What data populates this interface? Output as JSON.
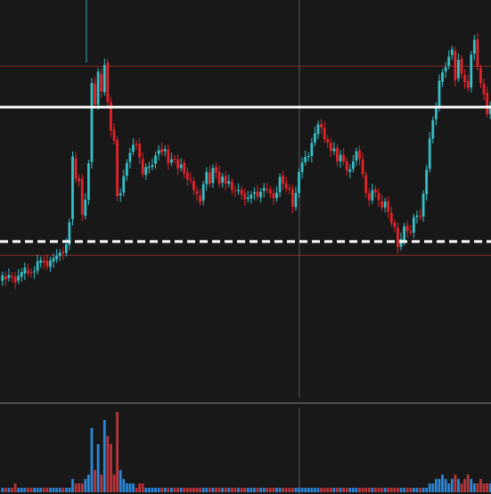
{
  "chart_data": {
    "type": "candlestick",
    "title": "",
    "xlabel": "",
    "ylabel": "",
    "grid": true,
    "legend": "none",
    "ylim": [
      0,
      100
    ],
    "colors": {
      "background": "#181818",
      "up": "#35c0c8",
      "down": "#e0242a",
      "volume_up": "#2a86d6",
      "volume_down": "#b9343a",
      "resistance_line": "#ffffff",
      "support_line": "#ffffff",
      "range_line": "#8a2a2a",
      "crosshair": "#5a5a5a",
      "pane_separator": "#505050"
    },
    "levels": {
      "resistance": 73.3,
      "support": 39.8,
      "range_high": 83.5,
      "range_low": 36.4
    },
    "candles": [
      [
        30.0,
        31.4
      ],
      [
        31.1,
        30.4
      ],
      [
        30.7,
        31.5
      ],
      [
        31.2,
        30.9
      ],
      [
        31.0,
        29.6
      ],
      [
        30.1,
        31.3
      ],
      [
        31.0,
        32.2
      ],
      [
        31.8,
        33.3
      ],
      [
        32.6,
        31.9
      ],
      [
        32.2,
        32.1
      ],
      [
        32.1,
        32.4
      ],
      [
        32.5,
        34.9
      ],
      [
        34.5,
        35.2
      ],
      [
        35.0,
        34.5
      ],
      [
        35.0,
        33.6
      ],
      [
        33.5,
        35.1
      ],
      [
        34.8,
        35.7
      ],
      [
        35.4,
        36.3
      ],
      [
        36.2,
        37.0
      ],
      [
        37.3,
        36.9
      ],
      [
        37.0,
        39.1
      ],
      [
        39.0,
        44.6
      ],
      [
        45.4,
        61.0
      ],
      [
        60.5,
        55.4
      ],
      [
        55.6,
        54.8
      ],
      [
        55.4,
        46.5
      ],
      [
        46.2,
        50.2
      ],
      [
        50.2,
        59.3
      ],
      [
        59.6,
        79.3
      ],
      [
        79.2,
        74.0
      ],
      [
        73.9,
        82.1
      ],
      [
        81.6,
        77.2
      ],
      [
        77.0,
        83.8
      ],
      [
        84.4,
        74.5
      ],
      [
        74.6,
        67.5
      ],
      [
        67.7,
        64.9
      ],
      [
        65.2,
        51.1
      ],
      [
        51.3,
        51.8
      ],
      [
        52.0,
        56.1
      ],
      [
        56.2,
        59.4
      ],
      [
        59.6,
        61.9
      ],
      [
        62.2,
        63.9
      ],
      [
        64.2,
        63.9
      ],
      [
        64.2,
        60.7
      ],
      [
        60.4,
        56.6
      ],
      [
        56.4,
        58.4
      ],
      [
        58.4,
        58.4
      ],
      [
        58.4,
        58.9
      ],
      [
        59.2,
        61.3
      ],
      [
        61.6,
        62.6
      ],
      [
        62.9,
        62.0
      ],
      [
        62.3,
        62.8
      ],
      [
        62.7,
        59.3
      ],
      [
        59.5,
        60.3
      ],
      [
        60.5,
        60.3
      ],
      [
        60.3,
        58.0
      ],
      [
        58.1,
        59.0
      ],
      [
        59.4,
        56.8
      ],
      [
        57.0,
        55.3
      ],
      [
        55.4,
        55.1
      ],
      [
        54.9,
        52.6
      ],
      [
        52.4,
        51.6
      ],
      [
        51.3,
        49.6
      ],
      [
        50.0,
        54.1
      ],
      [
        54.1,
        57.1
      ],
      [
        57.1,
        54.2
      ],
      [
        54.4,
        58.2
      ],
      [
        58.3,
        57.0
      ],
      [
        57.2,
        54.2
      ],
      [
        54.5,
        56.0
      ],
      [
        56.1,
        54.2
      ],
      [
        54.2,
        54.9
      ],
      [
        54.7,
        52.7
      ],
      [
        52.6,
        52.5
      ],
      [
        52.4,
        52.7
      ],
      [
        52.7,
        51.5
      ],
      [
        51.8,
        50.3
      ],
      [
        50.4,
        50.8
      ],
      [
        50.5,
        51.5
      ],
      [
        51.7,
        52.1
      ],
      [
        52.3,
        51.0
      ],
      [
        50.8,
        52.2
      ],
      [
        52.4,
        53.2
      ],
      [
        52.9,
        52.6
      ],
      [
        52.8,
        51.8
      ],
      [
        51.8,
        50.6
      ],
      [
        50.6,
        52.0
      ],
      [
        52.1,
        55.9
      ],
      [
        56.2,
        54.2
      ],
      [
        54.4,
        53.0
      ],
      [
        53.2,
        52.8
      ],
      [
        52.8,
        48.5
      ],
      [
        48.4,
        51.9
      ],
      [
        51.9,
        57.1
      ],
      [
        57.1,
        59.5
      ],
      [
        59.6,
        60.9
      ],
      [
        61.0,
        61.1
      ],
      [
        61.1,
        64.4
      ],
      [
        64.5,
        66.8
      ],
      [
        66.6,
        69.0
      ],
      [
        69.1,
        68.2
      ],
      [
        68.2,
        65.3
      ],
      [
        65.4,
        64.4
      ],
      [
        64.4,
        62.4
      ],
      [
        62.3,
        63.0
      ],
      [
        63.2,
        59.8
      ],
      [
        59.8,
        61.4
      ],
      [
        61.4,
        59.7
      ],
      [
        59.8,
        57.5
      ],
      [
        57.2,
        57.8
      ],
      [
        57.9,
        59.8
      ],
      [
        60.0,
        62.3
      ],
      [
        62.5,
        60.4
      ],
      [
        60.3,
        56.6
      ],
      [
        56.4,
        51.9
      ],
      [
        51.9,
        50.1
      ],
      [
        50.1,
        52.6
      ],
      [
        52.8,
        52.0
      ],
      [
        51.9,
        50.1
      ],
      [
        49.9,
        48.3
      ],
      [
        48.3,
        49.8
      ],
      [
        49.8,
        47.2
      ],
      [
        47.0,
        44.4
      ],
      [
        44.5,
        43.4
      ],
      [
        43.3,
        38.4
      ],
      [
        38.5,
        40.4
      ],
      [
        40.1,
        43.6
      ],
      [
        43.8,
        42.4
      ],
      [
        42.3,
        42.2
      ],
      [
        42.0,
        45.9
      ],
      [
        45.9,
        46.3
      ],
      [
        46.2,
        46.0
      ],
      [
        46.0,
        51.7
      ],
      [
        51.6,
        57.7
      ],
      [
        57.9,
        65.5
      ],
      [
        65.5,
        70.0
      ],
      [
        70.3,
        73.3
      ],
      [
        73.1,
        79.9
      ],
      [
        79.6,
        82.0
      ],
      [
        82.2,
        83.3
      ],
      [
        83.6,
        85.9
      ],
      [
        86.3,
        87.7
      ],
      [
        87.2,
        80.0
      ],
      [
        80.5,
        85.1
      ],
      [
        85.4,
        81.6
      ],
      [
        81.4,
        79.5
      ],
      [
        79.8,
        78.1
      ],
      [
        78.2,
        86.4
      ],
      [
        86.6,
        90.1
      ],
      [
        90.2,
        83.3
      ],
      [
        83.0,
        79.3
      ],
      [
        79.2,
        76.5
      ],
      [
        76.8,
        71.6
      ],
      [
        71.6,
        73.8
      ]
    ],
    "volume": [
      1,
      1,
      1,
      1,
      2,
      1,
      1,
      1,
      1,
      1,
      1,
      1,
      1,
      1,
      1,
      1,
      1,
      1,
      1,
      1,
      1,
      1,
      3,
      2,
      2,
      2,
      3,
      4,
      8,
      5,
      6,
      4,
      9,
      7,
      6,
      4,
      10,
      5,
      3,
      2,
      2,
      2,
      1,
      2,
      2,
      1,
      1,
      1,
      1,
      1,
      1,
      1,
      1,
      1,
      1,
      1,
      1,
      1,
      1,
      1,
      1,
      1,
      1,
      1,
      1,
      1,
      1,
      1,
      1,
      1,
      1,
      1,
      1,
      1,
      1,
      1,
      1,
      1,
      1,
      1,
      1,
      1,
      1,
      1,
      1,
      1,
      1,
      1,
      1,
      1,
      1,
      1,
      1,
      1,
      1,
      1,
      1,
      1,
      1,
      1,
      1,
      1,
      1,
      1,
      1,
      1,
      1,
      1,
      1,
      1,
      1,
      1,
      1,
      1,
      1,
      1,
      1,
      1,
      1,
      1,
      1,
      1,
      1,
      1,
      1,
      1,
      1,
      1,
      1,
      1,
      1,
      1,
      1,
      1,
      2,
      2,
      3,
      3,
      4,
      3,
      2,
      3,
      4,
      3,
      2,
      3,
      4,
      3,
      2,
      2,
      3,
      2,
      2,
      2
    ]
  }
}
